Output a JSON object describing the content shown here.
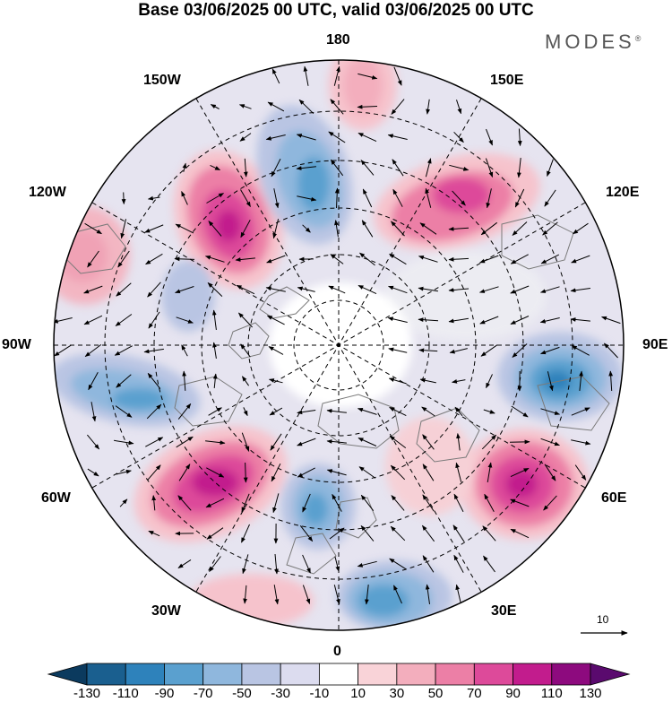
{
  "title": "Base 03/06/2025 00 UTC, valid 03/06/2025 00 UTC",
  "brand": "MODES",
  "brand_mark": "®",
  "longitude_labels": {
    "lon_180": "180",
    "lon_150E": "150E",
    "lon_120E": "120E",
    "lon_90E": "90E",
    "lon_60E": "60E",
    "lon_30E": "30E",
    "lon_0": "0",
    "lon_30W": "30W",
    "lon_60W": "60W",
    "lon_90W": "90W",
    "lon_120W": "120W",
    "lon_150W": "150W"
  },
  "reference_vector": {
    "label": "10"
  },
  "colorbar": {
    "ticks": [
      "-130",
      "-110",
      "-90",
      "-70",
      "-50",
      "-30",
      "-10",
      "10",
      "30",
      "50",
      "70",
      "90",
      "110",
      "130"
    ],
    "colors": [
      "#0b3a5e",
      "#1a5f8f",
      "#2e82bb",
      "#5aa0cf",
      "#8fb7dd",
      "#b9c5e3",
      "#dcdcef",
      "#ffffff",
      "#f9d3d8",
      "#f3aebd",
      "#ec7fa6",
      "#dd4a9a",
      "#c21c8d",
      "#8d0a7e",
      "#5a0a6e"
    ],
    "extend": "both"
  },
  "colors": {
    "land": "#7a7a7a",
    "graticule": "#000000",
    "arrows": "#000000"
  }
}
